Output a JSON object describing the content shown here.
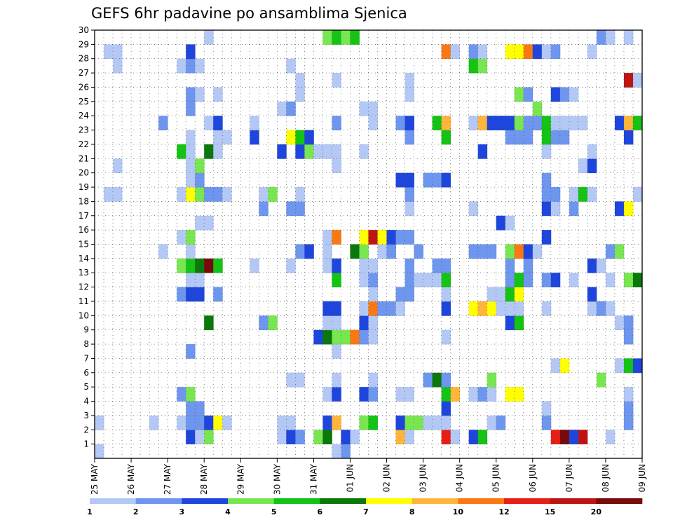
{
  "chart_data": {
    "type": "heatmap",
    "title": "GEFS 6hr padavine po ansamblima Sjenica",
    "xlabel": "",
    "ylabel": "",
    "x_tick_labels": [
      "25 MAY",
      "26 MAY",
      "27 MAY",
      "28 MAY",
      "29 MAY",
      "30 MAY",
      "31 MAY",
      "01 JUN",
      "02 JUN",
      "03 JUN",
      "04 JUN",
      "05 JUN",
      "06 JUN",
      "07 JUN",
      "08 JUN",
      "09 JUN"
    ],
    "xlim_steps": [
      0,
      60
    ],
    "y_tick_labels": [
      "1",
      "2",
      "3",
      "4",
      "5",
      "6",
      "7",
      "8",
      "9",
      "10",
      "11",
      "12",
      "13",
      "14",
      "15",
      "16",
      "17",
      "18",
      "19",
      "20",
      "21",
      "22",
      "23",
      "24",
      "25",
      "26",
      "27",
      "28",
      "29",
      "30"
    ],
    "ylim": [
      0,
      30
    ],
    "grid": true,
    "legend": {
      "placement": "bottom",
      "boundaries": [
        "1",
        "2",
        "3",
        "4",
        "5",
        "6",
        "7",
        "8",
        "10",
        "12",
        "15",
        "20"
      ],
      "colors": [
        "#b4c8f5",
        "#6e96ee",
        "#1e46dc",
        "#78e650",
        "#14c314",
        "#0a780a",
        "#ffff00",
        "#ffb43c",
        "#fa7814",
        "#e61e14",
        "#be1414",
        "#780a0a"
      ]
    },
    "cells": [
      [
        0,
        0,
        0
      ],
      [
        27,
        0,
        1
      ],
      [
        26,
        0,
        0
      ],
      [
        10,
        1,
        2
      ],
      [
        11,
        1,
        0
      ],
      [
        12,
        1,
        3
      ],
      [
        20,
        1,
        0
      ],
      [
        21,
        1,
        2
      ],
      [
        22,
        1,
        1
      ],
      [
        24,
        1,
        3
      ],
      [
        25,
        1,
        5
      ],
      [
        27,
        1,
        2
      ],
      [
        28,
        1,
        0
      ],
      [
        33,
        1,
        7
      ],
      [
        34,
        1,
        0
      ],
      [
        38,
        1,
        9
      ],
      [
        39,
        1,
        0
      ],
      [
        41,
        1,
        2
      ],
      [
        42,
        1,
        4
      ],
      [
        50,
        1,
        9
      ],
      [
        51,
        1,
        11
      ],
      [
        52,
        1,
        2
      ],
      [
        53,
        1,
        10
      ],
      [
        56,
        1,
        0
      ],
      [
        0,
        2,
        0
      ],
      [
        6,
        2,
        0
      ],
      [
        9,
        2,
        0
      ],
      [
        10,
        2,
        1
      ],
      [
        11,
        2,
        1
      ],
      [
        12,
        2,
        2
      ],
      [
        13,
        2,
        6
      ],
      [
        14,
        2,
        0
      ],
      [
        20,
        2,
        0
      ],
      [
        21,
        2,
        0
      ],
      [
        25,
        2,
        2
      ],
      [
        26,
        2,
        7
      ],
      [
        29,
        2,
        3
      ],
      [
        30,
        2,
        4
      ],
      [
        33,
        2,
        2
      ],
      [
        34,
        2,
        3
      ],
      [
        35,
        2,
        3
      ],
      [
        36,
        2,
        0
      ],
      [
        37,
        2,
        0
      ],
      [
        38,
        2,
        0
      ],
      [
        43,
        2,
        0
      ],
      [
        44,
        2,
        1
      ],
      [
        49,
        2,
        1
      ],
      [
        58,
        2,
        1
      ],
      [
        10,
        3,
        1
      ],
      [
        11,
        3,
        1
      ],
      [
        38,
        3,
        2
      ],
      [
        49,
        3,
        0
      ],
      [
        58,
        3,
        1
      ],
      [
        9,
        4,
        1
      ],
      [
        10,
        4,
        3
      ],
      [
        25,
        4,
        0
      ],
      [
        26,
        4,
        2
      ],
      [
        29,
        4,
        2
      ],
      [
        30,
        4,
        1
      ],
      [
        33,
        4,
        0
      ],
      [
        34,
        4,
        0
      ],
      [
        38,
        4,
        4
      ],
      [
        39,
        4,
        7
      ],
      [
        41,
        4,
        0
      ],
      [
        42,
        4,
        1
      ],
      [
        43,
        4,
        0
      ],
      [
        45,
        4,
        6
      ],
      [
        46,
        4,
        6
      ],
      [
        58,
        4,
        0
      ],
      [
        21,
        5,
        0
      ],
      [
        22,
        5,
        0
      ],
      [
        26,
        5,
        0
      ],
      [
        30,
        5,
        0
      ],
      [
        36,
        5,
        1
      ],
      [
        37,
        5,
        5
      ],
      [
        38,
        5,
        1
      ],
      [
        43,
        5,
        3
      ],
      [
        55,
        5,
        3
      ],
      [
        50,
        6,
        0
      ],
      [
        51,
        6,
        6
      ],
      [
        57,
        6,
        0
      ],
      [
        58,
        6,
        4
      ],
      [
        59,
        6,
        2
      ],
      [
        10,
        7,
        1
      ],
      [
        26,
        7,
        0
      ],
      [
        24,
        8,
        2
      ],
      [
        25,
        8,
        5
      ],
      [
        26,
        8,
        3
      ],
      [
        27,
        8,
        3
      ],
      [
        28,
        8,
        8
      ],
      [
        29,
        8,
        1
      ],
      [
        30,
        8,
        0
      ],
      [
        38,
        8,
        0
      ],
      [
        58,
        8,
        1
      ],
      [
        12,
        9,
        5
      ],
      [
        18,
        9,
        1
      ],
      [
        19,
        9,
        3
      ],
      [
        25,
        9,
        0
      ],
      [
        26,
        9,
        0
      ],
      [
        29,
        9,
        2
      ],
      [
        30,
        9,
        0
      ],
      [
        45,
        9,
        2
      ],
      [
        46,
        9,
        4
      ],
      [
        57,
        9,
        0
      ],
      [
        58,
        9,
        1
      ],
      [
        25,
        10,
        2
      ],
      [
        26,
        10,
        2
      ],
      [
        29,
        10,
        0
      ],
      [
        30,
        10,
        8
      ],
      [
        31,
        10,
        1
      ],
      [
        32,
        10,
        1
      ],
      [
        33,
        10,
        0
      ],
      [
        38,
        10,
        2
      ],
      [
        41,
        10,
        6
      ],
      [
        42,
        10,
        7
      ],
      [
        43,
        10,
        6
      ],
      [
        44,
        10,
        0
      ],
      [
        45,
        10,
        0
      ],
      [
        46,
        10,
        0
      ],
      [
        49,
        10,
        0
      ],
      [
        54,
        10,
        0
      ],
      [
        55,
        10,
        1
      ],
      [
        56,
        10,
        0
      ],
      [
        9,
        11,
        1
      ],
      [
        10,
        11,
        2
      ],
      [
        11,
        11,
        2
      ],
      [
        13,
        11,
        1
      ],
      [
        30,
        11,
        0
      ],
      [
        33,
        11,
        1
      ],
      [
        34,
        11,
        1
      ],
      [
        38,
        11,
        0
      ],
      [
        43,
        11,
        0
      ],
      [
        44,
        11,
        0
      ],
      [
        45,
        11,
        4
      ],
      [
        46,
        11,
        6
      ],
      [
        54,
        11,
        2
      ],
      [
        10,
        12,
        0
      ],
      [
        11,
        12,
        0
      ],
      [
        26,
        12,
        4
      ],
      [
        29,
        12,
        0
      ],
      [
        30,
        12,
        1
      ],
      [
        34,
        12,
        1
      ],
      [
        35,
        12,
        0
      ],
      [
        36,
        12,
        0
      ],
      [
        37,
        12,
        0
      ],
      [
        38,
        12,
        4
      ],
      [
        45,
        12,
        1
      ],
      [
        46,
        12,
        4
      ],
      [
        47,
        12,
        1
      ],
      [
        49,
        12,
        1
      ],
      [
        50,
        12,
        2
      ],
      [
        52,
        12,
        0
      ],
      [
        56,
        12,
        0
      ],
      [
        58,
        12,
        3
      ],
      [
        59,
        12,
        5
      ],
      [
        9,
        13,
        3
      ],
      [
        10,
        13,
        4
      ],
      [
        11,
        13,
        5
      ],
      [
        12,
        13,
        11
      ],
      [
        13,
        13,
        4
      ],
      [
        17,
        13,
        0
      ],
      [
        21,
        13,
        0
      ],
      [
        25,
        13,
        0
      ],
      [
        26,
        13,
        2
      ],
      [
        29,
        13,
        0
      ],
      [
        30,
        13,
        0
      ],
      [
        34,
        13,
        1
      ],
      [
        37,
        13,
        1
      ],
      [
        38,
        13,
        1
      ],
      [
        45,
        13,
        1
      ],
      [
        47,
        13,
        1
      ],
      [
        54,
        13,
        2
      ],
      [
        55,
        13,
        0
      ],
      [
        7,
        14,
        0
      ],
      [
        10,
        14,
        0
      ],
      [
        22,
        14,
        1
      ],
      [
        23,
        14,
        2
      ],
      [
        25,
        14,
        0
      ],
      [
        28,
        14,
        5
      ],
      [
        29,
        14,
        3
      ],
      [
        31,
        14,
        0
      ],
      [
        32,
        14,
        1
      ],
      [
        35,
        14,
        1
      ],
      [
        41,
        14,
        1
      ],
      [
        42,
        14,
        1
      ],
      [
        43,
        14,
        1
      ],
      [
        45,
        14,
        3
      ],
      [
        46,
        14,
        8
      ],
      [
        47,
        14,
        2
      ],
      [
        48,
        14,
        0
      ],
      [
        56,
        14,
        1
      ],
      [
        57,
        14,
        3
      ],
      [
        9,
        15,
        0
      ],
      [
        10,
        15,
        3
      ],
      [
        25,
        15,
        0
      ],
      [
        26,
        15,
        8
      ],
      [
        29,
        15,
        6
      ],
      [
        30,
        15,
        10
      ],
      [
        31,
        15,
        6
      ],
      [
        32,
        15,
        2
      ],
      [
        33,
        15,
        1
      ],
      [
        34,
        15,
        1
      ],
      [
        49,
        15,
        2
      ],
      [
        11,
        16,
        0
      ],
      [
        12,
        16,
        0
      ],
      [
        44,
        16,
        2
      ],
      [
        45,
        16,
        0
      ],
      [
        18,
        17,
        1
      ],
      [
        21,
        17,
        1
      ],
      [
        22,
        17,
        1
      ],
      [
        34,
        17,
        0
      ],
      [
        41,
        17,
        0
      ],
      [
        49,
        17,
        2
      ],
      [
        50,
        17,
        0
      ],
      [
        52,
        17,
        1
      ],
      [
        57,
        17,
        2
      ],
      [
        58,
        17,
        6
      ],
      [
        1,
        18,
        0
      ],
      [
        2,
        18,
        0
      ],
      [
        9,
        18,
        0
      ],
      [
        10,
        18,
        6
      ],
      [
        11,
        18,
        3
      ],
      [
        12,
        18,
        1
      ],
      [
        13,
        18,
        1
      ],
      [
        14,
        18,
        0
      ],
      [
        18,
        18,
        0
      ],
      [
        19,
        18,
        3
      ],
      [
        22,
        18,
        0
      ],
      [
        34,
        18,
        1
      ],
      [
        49,
        18,
        1
      ],
      [
        50,
        18,
        1
      ],
      [
        52,
        18,
        0
      ],
      [
        53,
        18,
        4
      ],
      [
        54,
        18,
        0
      ],
      [
        59,
        18,
        0
      ],
      [
        33,
        19,
        2
      ],
      [
        34,
        19,
        2
      ],
      [
        36,
        19,
        1
      ],
      [
        37,
        19,
        1
      ],
      [
        38,
        19,
        2
      ],
      [
        10,
        19,
        0
      ],
      [
        11,
        19,
        1
      ],
      [
        49,
        19,
        1
      ],
      [
        2,
        20,
        0
      ],
      [
        10,
        20,
        0
      ],
      [
        11,
        20,
        3
      ],
      [
        26,
        20,
        0
      ],
      [
        53,
        20,
        0
      ],
      [
        54,
        20,
        2
      ],
      [
        9,
        21,
        4
      ],
      [
        10,
        21,
        0
      ],
      [
        12,
        21,
        5
      ],
      [
        13,
        21,
        0
      ],
      [
        20,
        21,
        2
      ],
      [
        22,
        21,
        2
      ],
      [
        23,
        21,
        3
      ],
      [
        24,
        21,
        0
      ],
      [
        25,
        21,
        0
      ],
      [
        26,
        21,
        0
      ],
      [
        29,
        21,
        0
      ],
      [
        42,
        21,
        2
      ],
      [
        49,
        21,
        0
      ],
      [
        54,
        21,
        0
      ],
      [
        10,
        22,
        0
      ],
      [
        13,
        22,
        0
      ],
      [
        14,
        22,
        0
      ],
      [
        17,
        22,
        2
      ],
      [
        21,
        22,
        6
      ],
      [
        22,
        22,
        4
      ],
      [
        23,
        22,
        2
      ],
      [
        34,
        22,
        1
      ],
      [
        38,
        22,
        4
      ],
      [
        45,
        22,
        1
      ],
      [
        46,
        22,
        1
      ],
      [
        47,
        22,
        1
      ],
      [
        49,
        22,
        4
      ],
      [
        50,
        22,
        1
      ],
      [
        51,
        22,
        1
      ],
      [
        58,
        22,
        2
      ],
      [
        7,
        23,
        1
      ],
      [
        12,
        23,
        0
      ],
      [
        13,
        23,
        2
      ],
      [
        17,
        23,
        0
      ],
      [
        26,
        23,
        1
      ],
      [
        30,
        23,
        0
      ],
      [
        33,
        23,
        1
      ],
      [
        34,
        23,
        2
      ],
      [
        37,
        23,
        4
      ],
      [
        38,
        23,
        7
      ],
      [
        41,
        23,
        0
      ],
      [
        42,
        23,
        7
      ],
      [
        43,
        23,
        2
      ],
      [
        44,
        23,
        2
      ],
      [
        45,
        23,
        2
      ],
      [
        46,
        23,
        3
      ],
      [
        47,
        23,
        1
      ],
      [
        48,
        23,
        1
      ],
      [
        49,
        23,
        4
      ],
      [
        50,
        23,
        0
      ],
      [
        51,
        23,
        0
      ],
      [
        52,
        23,
        0
      ],
      [
        53,
        23,
        0
      ],
      [
        57,
        23,
        2
      ],
      [
        58,
        23,
        7
      ],
      [
        59,
        23,
        4
      ],
      [
        10,
        24,
        1
      ],
      [
        20,
        24,
        0
      ],
      [
        21,
        24,
        1
      ],
      [
        29,
        24,
        0
      ],
      [
        30,
        24,
        0
      ],
      [
        48,
        24,
        3
      ],
      [
        10,
        25,
        1
      ],
      [
        11,
        25,
        0
      ],
      [
        13,
        25,
        0
      ],
      [
        22,
        25,
        0
      ],
      [
        34,
        25,
        0
      ],
      [
        46,
        25,
        3
      ],
      [
        47,
        25,
        1
      ],
      [
        50,
        25,
        2
      ],
      [
        51,
        25,
        1
      ],
      [
        52,
        25,
        0
      ],
      [
        22,
        26,
        0
      ],
      [
        26,
        26,
        0
      ],
      [
        34,
        26,
        0
      ],
      [
        58,
        26,
        10
      ],
      [
        59,
        26,
        0
      ],
      [
        2,
        27,
        0
      ],
      [
        9,
        27,
        0
      ],
      [
        10,
        27,
        1
      ],
      [
        11,
        27,
        0
      ],
      [
        21,
        27,
        0
      ],
      [
        41,
        27,
        4
      ],
      [
        42,
        27,
        3
      ],
      [
        1,
        28,
        0
      ],
      [
        2,
        28,
        0
      ],
      [
        10,
        28,
        2
      ],
      [
        38,
        28,
        8
      ],
      [
        39,
        28,
        0
      ],
      [
        41,
        28,
        1
      ],
      [
        42,
        28,
        0
      ],
      [
        45,
        28,
        6
      ],
      [
        46,
        28,
        6
      ],
      [
        47,
        28,
        8
      ],
      [
        48,
        28,
        2
      ],
      [
        49,
        28,
        0
      ],
      [
        50,
        28,
        1
      ],
      [
        54,
        28,
        0
      ],
      [
        12,
        29,
        0
      ],
      [
        25,
        29,
        3
      ],
      [
        26,
        29,
        4
      ],
      [
        27,
        29,
        3
      ],
      [
        28,
        29,
        4
      ],
      [
        55,
        29,
        1
      ],
      [
        56,
        29,
        0
      ],
      [
        58,
        29,
        0
      ]
    ]
  }
}
